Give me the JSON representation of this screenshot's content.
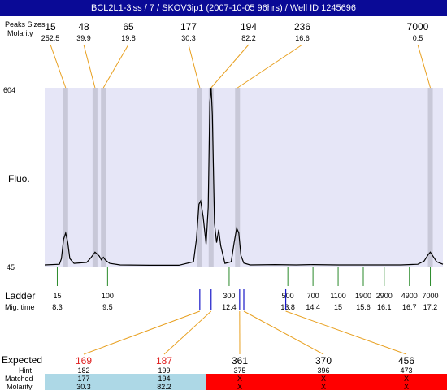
{
  "title": "BCL2L1-3'ss / 7 / SKOV3ip1 (2007-10-05 96hrs) / Well ID 1245696",
  "labels": {
    "peaks_sizes": "Peaks Sizes",
    "molarity": "Molarity",
    "fluo": "Fluo.",
    "ladder": "Ladder",
    "mig_time": "Mig. time",
    "expected": "Expected",
    "hint": "Hint",
    "matched": "Matched",
    "molarity_row": "Molarity"
  },
  "colors": {
    "title_bg": "#0a0a96",
    "plot_bg": "#e6e6f7",
    "peak_marker": "#c8c8d8",
    "leader_line": "#e8a020",
    "ladder_tick": "#2a8a2a",
    "sample_mark": "#1818c8",
    "expected_hit": "#e02020",
    "matched_band": "#add8e6",
    "unmatched_band": "#ff0000"
  },
  "chart_data": {
    "type": "line",
    "ylabel": "Fluo.",
    "y_axis_ticks": [
      "604",
      "45"
    ],
    "ylim": [
      45,
      604
    ],
    "peaks": [
      {
        "size": "15",
        "molarity": "252.5",
        "mig_time": 8.5
      },
      {
        "size": "48",
        "molarity": "39.9",
        "mig_time": 9.2
      },
      {
        "size": "65",
        "molarity": "19.8",
        "mig_time": 9.4
      },
      {
        "size": "177",
        "molarity": "30.3",
        "mig_time": 11.7
      },
      {
        "size": "194",
        "molarity": "82.2",
        "mig_time": 11.97
      },
      {
        "size": "236",
        "molarity": "16.6",
        "mig_time": 12.6
      },
      {
        "size": "7000",
        "molarity": "0.5",
        "mig_time": 17.2
      }
    ],
    "trace": {
      "x": [
        8.0,
        8.35,
        8.4,
        8.45,
        8.5,
        8.55,
        8.6,
        8.7,
        9.0,
        9.1,
        9.2,
        9.3,
        9.35,
        9.4,
        9.45,
        9.55,
        9.8,
        10.5,
        11.2,
        11.55,
        11.62,
        11.68,
        11.72,
        11.78,
        11.85,
        11.9,
        11.94,
        11.97,
        12.0,
        12.05,
        12.1,
        12.15,
        12.2,
        12.3,
        12.45,
        12.52,
        12.58,
        12.63,
        12.68,
        12.75,
        12.9,
        13.5,
        14.0,
        14.4,
        15.0,
        15.6,
        16.1,
        16.5,
        16.9,
        17.05,
        17.15,
        17.2,
        17.25,
        17.35,
        17.5
      ],
      "y": [
        50,
        52,
        70,
        130,
        150,
        120,
        70,
        55,
        58,
        72,
        90,
        78,
        66,
        74,
        65,
        55,
        50,
        49,
        49,
        60,
        130,
        240,
        250,
        200,
        115,
        230,
        560,
        604,
        520,
        180,
        120,
        160,
        110,
        55,
        60,
        120,
        165,
        150,
        80,
        56,
        50,
        51,
        50,
        51,
        50,
        50,
        50,
        50,
        52,
        62,
        82,
        90,
        80,
        60,
        52
      ]
    },
    "ladder": {
      "sizes": [
        "15",
        "100",
        "300",
        "500",
        "700",
        "1100",
        "1900",
        "2900",
        "4900",
        "7000"
      ],
      "mig_times": [
        "8.3",
        "9.5",
        "12.4",
        "13.8",
        "14.4",
        "15",
        "15.6",
        "16.1",
        "16.7",
        "17.2"
      ]
    },
    "sample_marks": [
      11.7,
      11.97,
      12.65,
      12.75,
      13.75
    ],
    "expected": [
      {
        "expected": "169",
        "hint": "182",
        "matched": "177",
        "molarity": "30.3",
        "hit": true,
        "mark": 11.7
      },
      {
        "expected": "187",
        "hint": "199",
        "matched": "194",
        "molarity": "82.2",
        "hit": true,
        "mark": 11.97
      },
      {
        "expected": "361",
        "hint": "375",
        "matched": "X",
        "molarity": "X",
        "hit": false,
        "mark": 12.65
      },
      {
        "expected": "370",
        "hint": "396",
        "matched": "X",
        "molarity": "X",
        "hit": false,
        "mark": 12.75
      },
      {
        "expected": "456",
        "hint": "473",
        "matched": "X",
        "molarity": "X",
        "hit": false,
        "mark": 13.75
      }
    ]
  }
}
